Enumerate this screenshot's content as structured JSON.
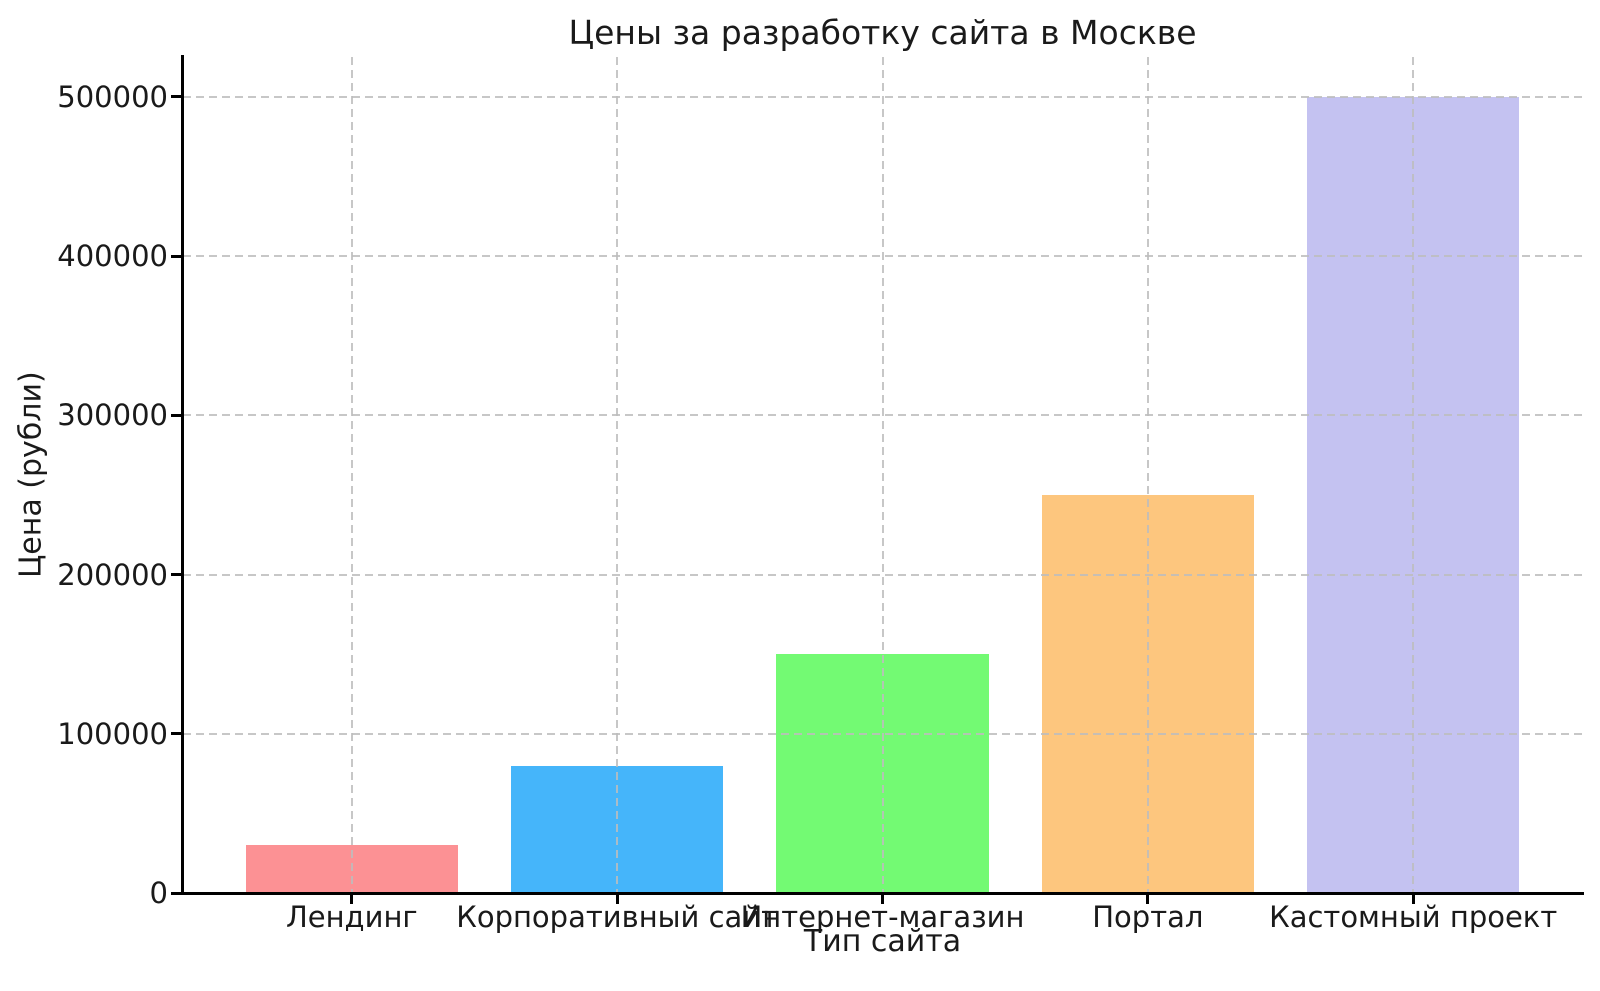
{
  "chart_data": {
    "type": "bar",
    "title": "Цены за разработку сайта в Москве",
    "xlabel": "Тип сайта",
    "ylabel": "Цена (рубли)",
    "categories": [
      "Лендинг",
      "Корпоративный сайт",
      "Интернет-магазин",
      "Портал",
      "Кастомный проект"
    ],
    "values": [
      30000,
      80000,
      150000,
      250000,
      500000
    ],
    "bar_colors": [
      "#fc9194",
      "#45b5fa",
      "#73fa73",
      "#fdc67e",
      "#c4c2f1"
    ],
    "yticks": [
      0,
      100000,
      200000,
      300000,
      400000,
      500000
    ],
    "ylim": [
      0,
      525000
    ],
    "xlim_categories": [
      -0.64,
      4.64
    ],
    "bar_width_fraction": 0.8,
    "grid": "dashed",
    "grid_color": "#bdbdbd",
    "legend_position": "none"
  }
}
